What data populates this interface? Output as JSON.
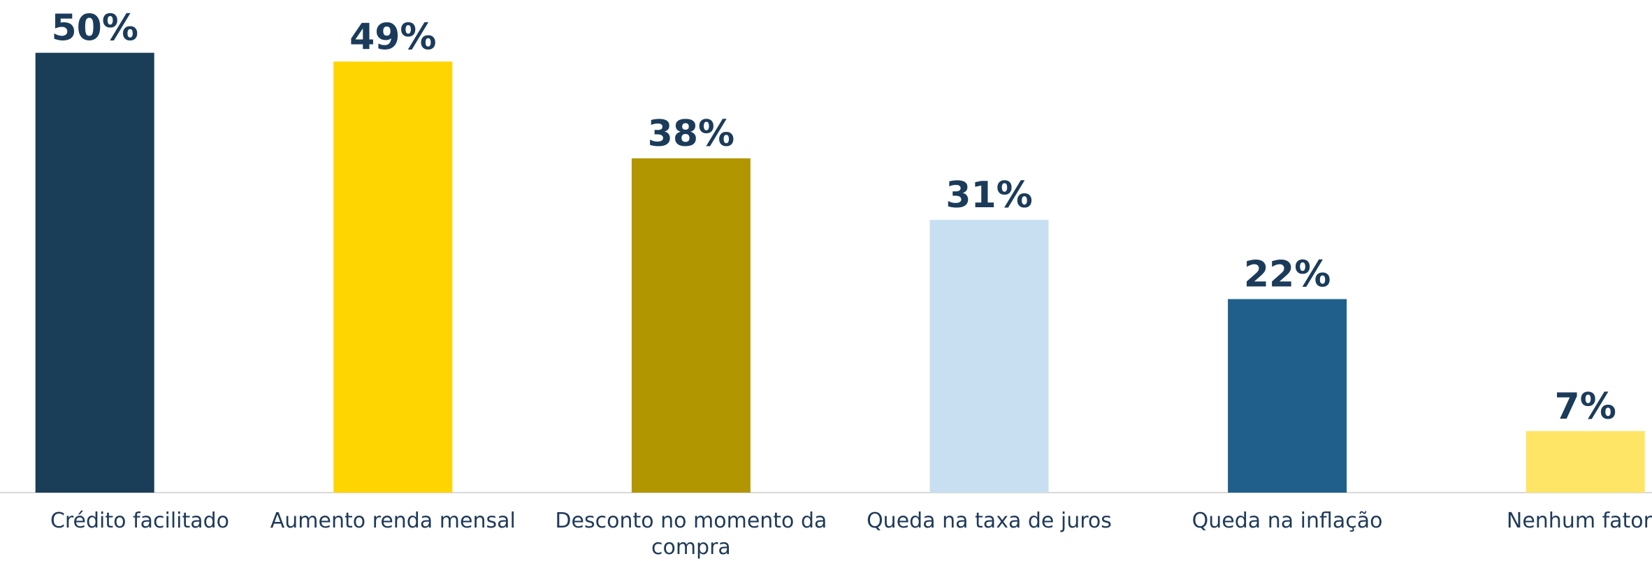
{
  "chart_data": {
    "type": "bar",
    "categories": [
      "Crédito facilitado",
      "Aumento renda mensal",
      "Desconto no momento da compra",
      "Queda na taxa de juros",
      "Queda na inflação",
      "Nenhum fator"
    ],
    "values": [
      50,
      49,
      38,
      31,
      22,
      7
    ],
    "value_labels": [
      "50%",
      "49%",
      "38%",
      "31%",
      "22%",
      "7%"
    ],
    "colors": [
      "#1a3e58",
      "#ffd500",
      "#b29600",
      "#c8dff1",
      "#205f8b",
      "#ffe566"
    ],
    "ylim": [
      0,
      56
    ]
  }
}
